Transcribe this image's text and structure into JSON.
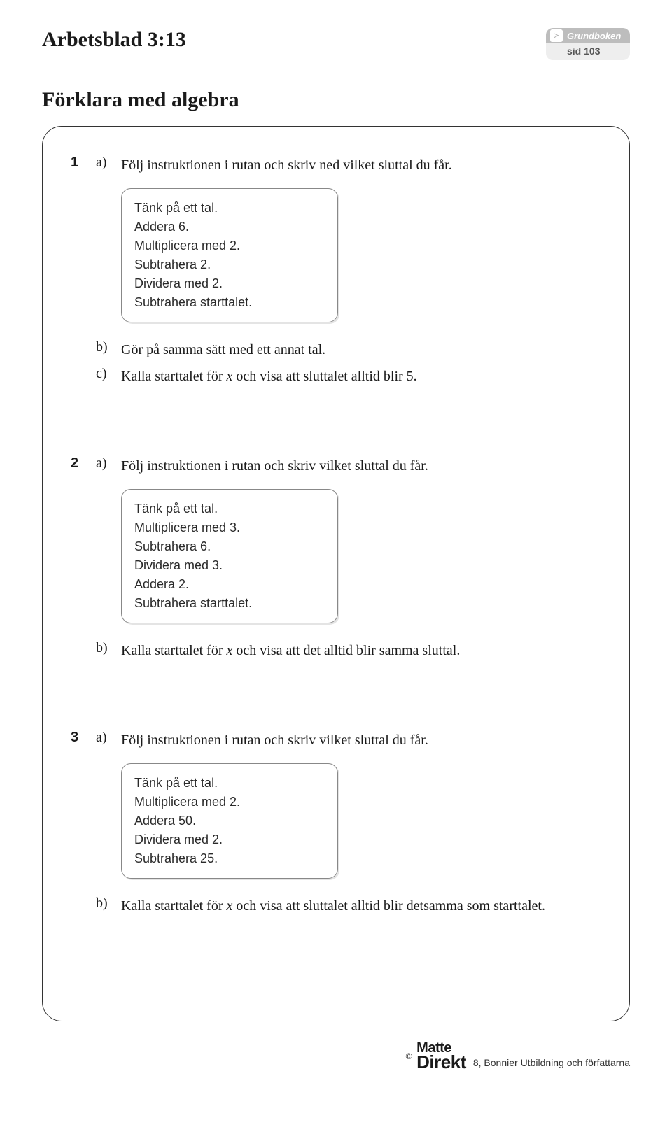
{
  "header": {
    "worksheet_title": "Arbetsblad 3:13",
    "ref_top": "Grundboken",
    "ref_bottom": "sid 103",
    "ref_chevron_glyph": ">"
  },
  "section_title": "Förklara med algebra",
  "problems": [
    {
      "number": "1",
      "parts_before": [
        {
          "label": "a)",
          "text": "Följ instruktionen i rutan och skriv ned vilket sluttal du får."
        }
      ],
      "instructions": [
        "Tänk på ett tal.",
        "Addera 6.",
        "Multiplicera med 2.",
        "Subtrahera  2.",
        "Dividera med 2.",
        "Subtrahera starttalet."
      ],
      "parts_after": [
        {
          "label": "b)",
          "text": "Gör på samma sätt med ett annat tal."
        },
        {
          "label": "c)",
          "text_pre": "Kalla starttalet för ",
          "ital": "x",
          "text_post": " och visa att sluttalet alltid blir 5."
        }
      ]
    },
    {
      "number": "2",
      "parts_before": [
        {
          "label": "a)",
          "text": "Följ instruktionen i rutan och skriv vilket sluttal du får."
        }
      ],
      "instructions": [
        "Tänk på ett tal.",
        "Multiplicera med 3.",
        "Subtrahera 6.",
        "Dividera med 3.",
        "Addera 2.",
        "Subtrahera starttalet."
      ],
      "parts_after": [
        {
          "label": "b)",
          "text_pre": "Kalla starttalet för ",
          "ital": "x",
          "text_post": " och visa att det alltid blir samma sluttal."
        }
      ]
    },
    {
      "number": "3",
      "parts_before": [
        {
          "label": "a)",
          "text": "Följ instruktionen i rutan och skriv vilket sluttal du får."
        }
      ],
      "instructions": [
        "Tänk på ett tal.",
        "Multiplicera med 2.",
        "Addera 50.",
        "Dividera med 2.",
        "Subtrahera 25."
      ],
      "parts_after": [
        {
          "label": "b)",
          "text_pre": "Kalla starttalet för ",
          "ital": "x",
          "text_post": " och visa att sluttalet alltid blir detsamma som starttalet."
        }
      ]
    }
  ],
  "footer": {
    "copyright": "©",
    "logo_top": "Matte",
    "logo_bottom": "Direkt",
    "tail": "8, Bonnier Utbildning och författarna"
  },
  "colors": {
    "text": "#1a1a1a",
    "border": "#333333",
    "card_border": "#888888",
    "card_shadow": "#e4e4e4",
    "badge_top_bg": "#bdbdbd",
    "badge_bottom_bg": "#eeeeee",
    "badge_top_text": "#ffffff",
    "badge_bottom_text": "#555555",
    "background": "#ffffff"
  },
  "typography": {
    "body_font": "Georgia, serif",
    "sans_font": "Arial, Helvetica, sans-serif",
    "title_size_pt": 30,
    "body_size_pt": 20,
    "card_size_pt": 18,
    "badge_size_pt": 13
  }
}
